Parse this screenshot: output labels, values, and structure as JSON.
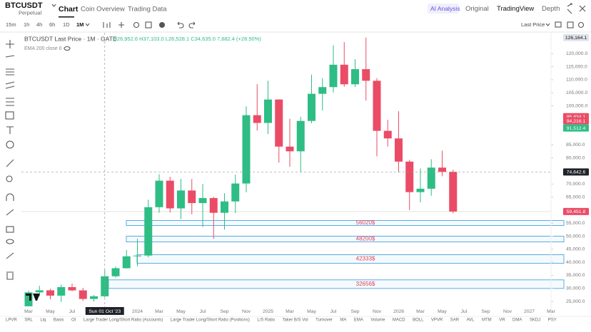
{
  "header": {
    "symbol": "BTCUSDT",
    "contract": "Perpetual",
    "tabs": [
      "Chart",
      "Coin Overview",
      "Trading Data"
    ],
    "views": [
      "AI Analysis",
      "Original",
      "TradingView",
      "Depth"
    ]
  },
  "toolbar": {
    "intervals": [
      "15m",
      "1h",
      "4h",
      "6h",
      "1D",
      "1M"
    ],
    "price_source": "Last Price"
  },
  "chart_data": {
    "type": "candlestick",
    "title": "BTCUSDT Last Price · 1M · GATE",
    "ohlc_legend": "O26,952.6 H37,103.0 L26,528.1 C34,635.0 7,682.4 (+28.50%)",
    "indicator": "EMA 200 close 0",
    "up_color": "#2ebd85",
    "down_color": "#ea4c66",
    "categories": [
      "Mar",
      null,
      "May",
      null,
      "Jul",
      null,
      null,
      null,
      null,
      null,
      "2024",
      null,
      "Mar",
      null,
      "May",
      null,
      "Jul",
      null,
      "Sep",
      null,
      "Nov",
      null,
      "2025",
      null,
      "Mar",
      null,
      "May",
      null,
      "Jul",
      null,
      "Sep",
      null,
      "Nov",
      null,
      "2026",
      null,
      "Mar",
      null,
      "May",
      null,
      "Jul",
      null,
      "Sep",
      null,
      "Nov",
      null,
      "2027",
      null,
      "Mar"
    ],
    "open": [
      23130,
      28470,
      29250,
      27210,
      30470,
      29230,
      25940,
      26952.6,
      34635,
      37720,
      42280,
      42580,
      61130,
      71290,
      60670,
      67530,
      62700,
      64620,
      58970,
      63330,
      70200,
      96400,
      93430,
      102400,
      84350,
      82550,
      94200,
      104600,
      107170,
      115750,
      108250,
      114050,
      109600,
      90400,
      87500,
      78600,
      66900,
      68200,
      76300,
      74642.6,
      null,
      null,
      null,
      null,
      null,
      null,
      null,
      null,
      null
    ],
    "high": [
      29190,
      31000,
      29820,
      31430,
      31800,
      30200,
      27480,
      37103.0,
      38400,
      44700,
      48970,
      64000,
      73780,
      72800,
      71980,
      71950,
      70000,
      65100,
      66500,
      73600,
      99800,
      108300,
      109600,
      102500,
      95000,
      95800,
      111900,
      110600,
      123200,
      124450,
      117900,
      126164.1,
      110600,
      94600,
      97900,
      79300,
      76000,
      79500,
      82800,
      75500,
      null,
      null,
      null,
      null,
      null,
      null,
      null,
      null,
      null
    ],
    "low": [
      19550,
      26940,
      25810,
      24800,
      28860,
      25170,
      24900,
      26528.1,
      34100,
      37600,
      38550,
      41880,
      59000,
      59100,
      56550,
      58400,
      53500,
      49000,
      52550,
      58900,
      66800,
      90500,
      89200,
      78200,
      76600,
      74500,
      93300,
      98200,
      105100,
      107300,
      107200,
      102000,
      80600,
      84400,
      74500,
      60000,
      63000,
      65500,
      73000,
      58800,
      null,
      null,
      null,
      null,
      null,
      null,
      null,
      null,
      null
    ],
    "close": [
      28470,
      29250,
      27210,
      30470,
      29230,
      25940,
      26960,
      34635.0,
      37720,
      42280,
      42580,
      61130,
      71290,
      60670,
      67530,
      62700,
      64620,
      58970,
      63330,
      70200,
      96400,
      93430,
      102400,
      84350,
      82550,
      94200,
      104600,
      107170,
      115750,
      108250,
      114050,
      109600,
      90400,
      87500,
      78600,
      66900,
      68200,
      76300,
      74642.6,
      59451.8,
      null,
      null,
      null,
      null,
      null,
      null,
      null,
      null,
      null
    ],
    "ylim": [
      23100,
      128000
    ],
    "yticks": [
      {
        "value": 25000,
        "label": "25,000.0"
      },
      {
        "value": 30000,
        "label": "30,000.0"
      },
      {
        "value": 35000,
        "label": "35,000.0"
      },
      {
        "value": 40000,
        "label": "40,000.0"
      },
      {
        "value": 45000,
        "label": "45,000.0"
      },
      {
        "value": 50000,
        "label": "50,000.0"
      },
      {
        "value": 55000,
        "label": "55,000.0"
      },
      {
        "value": 65000,
        "label": "65,000.0"
      },
      {
        "value": 70000,
        "label": "70,000.0"
      },
      {
        "value": 80000,
        "label": "80,000.0"
      },
      {
        "value": 85000,
        "label": "85,000.0"
      },
      {
        "value": 100000,
        "label": "100,000.0"
      },
      {
        "value": 105000,
        "label": "105,000.0"
      },
      {
        "value": 110000,
        "label": "110,000.0"
      },
      {
        "value": 115000,
        "label": "115,000.0"
      },
      {
        "value": 120000,
        "label": "120,000.0"
      }
    ],
    "price_tags": [
      {
        "value": 126164.1,
        "label": "126,164.1",
        "color": "#dfe3ea"
      },
      {
        "value": 95834.1,
        "label": "95,834.1",
        "color": "#ea4c66"
      },
      {
        "value": 94216.1,
        "label": "94,216.1",
        "color": "#ea4c66"
      },
      {
        "value": 91512.4,
        "label": "91,512.4",
        "color": "#2ebd85"
      },
      {
        "value": 59451.8,
        "label": "59,451.8",
        "color": "#ea4c66"
      }
    ],
    "crosshair": {
      "x_label": "Sun 01 Oct '23",
      "price": 74642.6,
      "price_label": "74,642.6"
    },
    "zones": [
      {
        "label": "56020$",
        "top": 56020,
        "bottom": 54100,
        "color": "#4aa3df"
      },
      {
        "label": "48200$",
        "top": 50000,
        "bottom": 47800,
        "color": "#4aa3df"
      },
      {
        "label": "42333$",
        "top": 42900,
        "bottom": 39600,
        "color": "#4aa3df"
      },
      {
        "label": "32656$",
        "top": 33260,
        "bottom": 29970,
        "color": "#4aa3df"
      }
    ]
  },
  "indicators": [
    "LPVR",
    "SRL",
    "Liq",
    "Basis",
    "OI",
    "Large Trader Long/Short Ratio (Accounts)",
    "Large Trader Long/Short Ratio (Positions)",
    "L/S Ratio",
    "Taker B/S Vol",
    "Turnover",
    "MA",
    "EMA",
    "Volume",
    "MACD",
    "BOLL",
    "VPVR",
    "SAR",
    "AVL",
    "MTM",
    "VR",
    "DMA",
    "SKDJ",
    "PSY"
  ]
}
